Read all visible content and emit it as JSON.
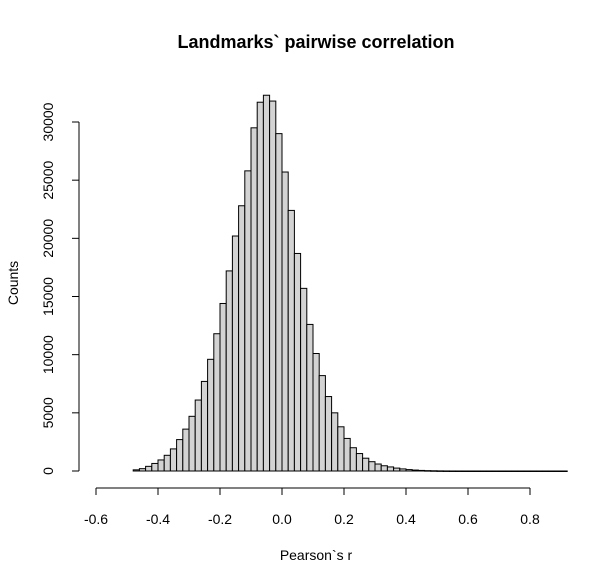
{
  "chart_data": {
    "type": "bar",
    "title": "Landmarks` pairwise correlation",
    "xlabel": "Pearson`s r",
    "ylabel": "Counts",
    "xlim": [
      -0.6,
      0.8
    ],
    "ylim": [
      0,
      32500
    ],
    "x_ticks": [
      "-0.6",
      "-0.4",
      "-0.2",
      "0.0",
      "0.2",
      "0.4",
      "0.6",
      "0.8"
    ],
    "y_ticks": [
      "0",
      "5000",
      "10000",
      "15000",
      "20000",
      "25000",
      "30000"
    ],
    "bin_width": 0.02,
    "bin_start": -0.48,
    "values": [
      100,
      200,
      400,
      650,
      950,
      1350,
      1900,
      2700,
      3600,
      4700,
      6100,
      7700,
      9600,
      11800,
      14400,
      17200,
      20200,
      22800,
      25800,
      29500,
      31700,
      32300,
      31800,
      29000,
      25700,
      22400,
      18700,
      15700,
      12600,
      10100,
      8200,
      6400,
      5000,
      3800,
      2800,
      2000,
      1500,
      1100,
      800,
      600,
      450,
      350,
      250,
      180,
      120,
      80,
      50,
      30,
      20,
      10,
      5,
      3,
      2,
      1,
      1,
      1,
      1,
      1,
      1,
      1,
      1,
      1,
      1,
      1,
      1,
      1,
      1,
      1,
      1,
      1,
      0,
      0,
      0,
      0,
      0,
      0,
      0,
      0,
      0,
      0,
      0,
      0,
      0,
      0,
      0,
      0,
      0,
      0,
      0,
      0,
      0,
      0,
      0,
      0,
      0,
      0,
      0,
      0,
      0,
      0
    ]
  }
}
